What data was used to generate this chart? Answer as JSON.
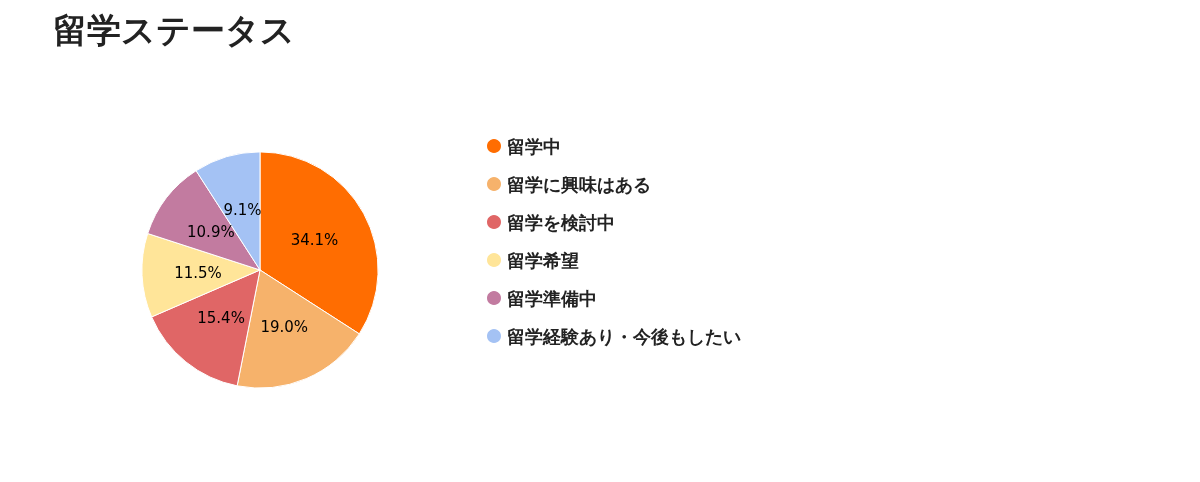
{
  "chart_data": {
    "type": "pie",
    "title": "留学ステータス",
    "categories": [
      "留学中",
      "留学に興味はある",
      "留学を検討中",
      "留学希望",
      "留学準備中",
      "留学経験あり・今後もしたい"
    ],
    "values": [
      34.1,
      19.0,
      15.4,
      11.5,
      10.9,
      9.1
    ],
    "colors": [
      "#ff6d01",
      "#f6b26b",
      "#e06666",
      "#ffe599",
      "#c27ba0",
      "#a4c2f4"
    ],
    "value_labels": [
      "34.1%",
      "19.0%",
      "15.4%",
      "11.5%",
      "10.9%",
      "9.1%"
    ],
    "legend": "right"
  }
}
